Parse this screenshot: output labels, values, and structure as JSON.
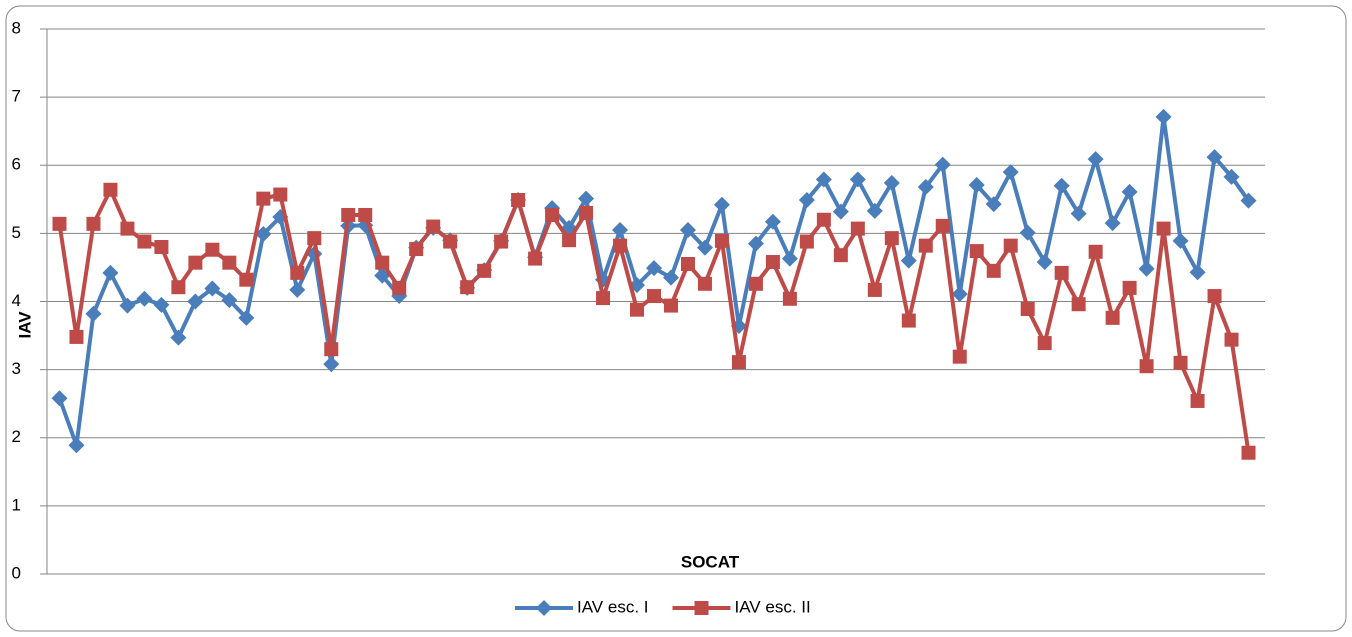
{
  "chart_data": {
    "type": "line",
    "x_label": "SOCAT",
    "y_label": "IAV",
    "categories": [
      null,
      null,
      null,
      null,
      null,
      null,
      null,
      null,
      null,
      null,
      null,
      null,
      null,
      null,
      null,
      null,
      null,
      null,
      null,
      null,
      null,
      null,
      null,
      null,
      null,
      null,
      null,
      null,
      null,
      null,
      null,
      null,
      null,
      null,
      null,
      null,
      null,
      null,
      null,
      null,
      null,
      null,
      null,
      null,
      null,
      null,
      null,
      null,
      null,
      null,
      null,
      null,
      null,
      null,
      null,
      null,
      null,
      null,
      null,
      null,
      null,
      null,
      null,
      null,
      null,
      null,
      null,
      null,
      null,
      null,
      null
    ],
    "series": [
      {
        "name": "IAV esc. I",
        "color": "#4a7ebb",
        "marker": "diamond",
        "values": [
          2.58,
          1.89,
          3.82,
          4.42,
          3.94,
          4.04,
          3.95,
          3.47,
          4.0,
          4.19,
          4.02,
          3.76,
          4.99,
          5.24,
          4.17,
          4.7,
          3.08,
          5.11,
          5.12,
          4.38,
          4.08,
          4.79,
          5.08,
          4.9,
          4.2,
          4.46,
          4.89,
          5.49,
          4.65,
          5.37,
          5.08,
          5.51,
          4.32,
          5.05,
          4.24,
          4.49,
          4.35,
          5.05,
          4.79,
          5.42,
          3.64,
          4.85,
          5.17,
          4.63,
          5.49,
          5.79,
          5.32,
          5.79,
          5.33,
          5.74,
          4.6,
          5.68,
          6.01,
          4.11,
          5.71,
          5.43,
          5.9,
          5.01,
          4.58,
          5.7,
          5.29,
          6.09,
          5.15,
          5.61,
          4.48,
          6.71,
          4.89,
          4.43,
          6.12,
          5.83,
          5.48
        ]
      },
      {
        "name": "IAV esc. II",
        "color": "#be4b48",
        "marker": "square",
        "values": [
          5.14,
          3.48,
          5.14,
          5.64,
          5.07,
          4.88,
          4.8,
          4.21,
          4.57,
          4.76,
          4.57,
          4.32,
          5.51,
          5.57,
          4.42,
          4.93,
          3.3,
          5.27,
          5.27,
          4.57,
          4.2,
          4.77,
          5.1,
          4.88,
          4.21,
          4.45,
          4.88,
          5.49,
          4.63,
          5.27,
          4.9,
          5.3,
          4.05,
          4.82,
          3.88,
          4.08,
          3.94,
          4.55,
          4.26,
          4.89,
          3.11,
          4.26,
          4.58,
          4.04,
          4.88,
          5.2,
          4.68,
          5.07,
          4.17,
          4.93,
          3.72,
          4.82,
          5.11,
          3.19,
          4.74,
          4.45,
          4.82,
          3.89,
          3.39,
          4.42,
          3.96,
          4.73,
          3.76,
          4.2,
          3.05,
          5.07,
          3.1,
          2.54,
          4.08,
          3.44,
          1.78
        ]
      }
    ],
    "ylim": [
      0,
      8
    ],
    "yticks": [
      0,
      1,
      2,
      3,
      4,
      5,
      6,
      7,
      8
    ],
    "grid": true,
    "legend": "bottom"
  }
}
